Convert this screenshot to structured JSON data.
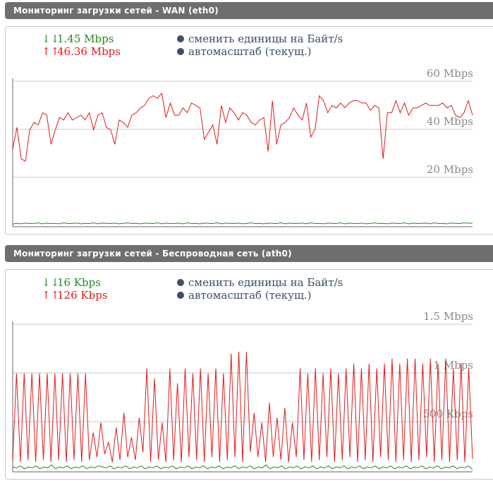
{
  "panels": [
    {
      "title": "Мониторинг загрузки сетей - WAN (eth0)",
      "rx_arrow": "↓↓",
      "rx_value": "1.45 Mbps",
      "tx_arrow": "↑↑",
      "tx_value": "46.36 Mbps",
      "toggle_units_label": "сменить единицы на Байт/s",
      "autoscale_label": "автомасштаб (текущ.)",
      "scale_labels": [
        "60 Mbps",
        "40 Mbps",
        "20 Mbps"
      ],
      "scale_max_mbps": 80,
      "tx_series": [
        32,
        41,
        28,
        27,
        40,
        43,
        42,
        47,
        46,
        34,
        40,
        45,
        44,
        47,
        44,
        45,
        46,
        44,
        47,
        40,
        46,
        47,
        41,
        40,
        34,
        44,
        43,
        41,
        46,
        47,
        49,
        50,
        53,
        54,
        53,
        55,
        45,
        51,
        46,
        46,
        49,
        47,
        51,
        50,
        49,
        36,
        39,
        42,
        34,
        50,
        43,
        49,
        47,
        44,
        47,
        46,
        43,
        42,
        44,
        45,
        31,
        52,
        34,
        42,
        43,
        45,
        49,
        46,
        44,
        51,
        37,
        40,
        54,
        52,
        47,
        50,
        49,
        51,
        49,
        51,
        52,
        52,
        51,
        51,
        48,
        50,
        49,
        28,
        47,
        47,
        52,
        47,
        51,
        46,
        49,
        49,
        50,
        51,
        50,
        50,
        50,
        51,
        49,
        50,
        46,
        45,
        47,
        52,
        46
      ],
      "rx_series": [
        1.1,
        1.4,
        1.2,
        1.5,
        1.3,
        1.4,
        1.6,
        1.2,
        1.5,
        1.3,
        1.4,
        1.2,
        1.6,
        1.3,
        1.4,
        1.5,
        1.2,
        1.4,
        1.3,
        1.6,
        1.2,
        1.5,
        1.4,
        1.3,
        1.5,
        1.2,
        1.4,
        1.6,
        1.3,
        1.4,
        1.2,
        1.5,
        1.4,
        1.3,
        1.6,
        1.2,
        1.5,
        1.3,
        1.4,
        1.5,
        1.2,
        1.6,
        1.3,
        1.4,
        1.2,
        1.5,
        1.4,
        1.3,
        1.6,
        1.2,
        1.5,
        1.4,
        1.3,
        1.5,
        1.2,
        1.4,
        1.6,
        1.3,
        1.4,
        1.2,
        1.5,
        1.4,
        1.3,
        1.6,
        1.2,
        1.5,
        1.3,
        1.4,
        1.5,
        1.2,
        1.6,
        1.3,
        1.4,
        1.2,
        1.5,
        1.4,
        1.3,
        1.6,
        1.2,
        1.5,
        1.4,
        1.3,
        1.5,
        1.2,
        1.4,
        1.6,
        1.3,
        1.4,
        1.2,
        1.5,
        1.4,
        1.3,
        1.6,
        1.2,
        1.5,
        1.3,
        1.4,
        1.5,
        1.2,
        1.6,
        1.3,
        1.4,
        1.2,
        1.5,
        1.4,
        1.3,
        1.6,
        1.45,
        1.45
      ]
    },
    {
      "title": "Мониторинг загрузки сетей - Беспроводная сеть (ath0)",
      "rx_arrow": "↓↓",
      "rx_value": "16 Kbps",
      "tx_arrow": "↑↑",
      "tx_value": "126 Kbps",
      "toggle_units_label": "сменить единицы на Байт/s",
      "autoscale_label": "автомасштаб (текущ.)",
      "scale_labels": [
        "1.5 Mbps",
        "1 Mbps",
        "500 Kbps"
      ],
      "scale_max_mbps": 2.0,
      "tx_series": [
        0.12,
        1.0,
        0.1,
        1.0,
        0.12,
        1.0,
        0.1,
        1.0,
        0.12,
        1.0,
        0.1,
        1.0,
        0.12,
        1.0,
        0.1,
        1.0,
        0.12,
        1.0,
        0.1,
        1.0,
        0.12,
        0.4,
        0.15,
        0.5,
        0.18,
        0.3,
        0.1,
        0.45,
        0.12,
        0.6,
        0.15,
        0.35,
        0.12,
        0.55,
        0.2,
        1.05,
        0.1,
        0.95,
        0.12,
        0.5,
        0.1,
        1.05,
        0.12,
        0.9,
        0.1,
        1.05,
        0.15,
        1.0,
        0.12,
        1.05,
        0.1,
        1.0,
        0.15,
        1.05,
        0.1,
        1.0,
        0.12,
        1.2,
        0.15,
        1.22,
        0.1,
        1.22,
        0.2,
        0.6,
        0.15,
        0.5,
        0.1,
        0.7,
        0.15,
        0.55,
        0.12,
        0.65,
        0.1,
        0.5,
        0.15,
        1.05,
        0.12,
        1.0,
        0.1,
        1.05,
        0.12,
        1.0,
        0.15,
        1.05,
        0.1,
        1.0,
        0.12,
        1.05,
        0.15,
        1.1,
        0.1,
        1.05,
        0.12,
        1.1,
        0.1,
        1.05,
        0.15,
        1.1,
        0.12,
        1.15,
        0.1,
        1.1,
        0.12,
        1.15,
        0.1,
        1.15,
        0.12,
        1.1,
        0.15,
        1.15,
        0.1,
        1.1,
        0.12,
        1.15,
        0.1,
        1.05,
        0.12,
        1.1,
        0.1,
        1.05,
        0.13
      ],
      "rx_series": [
        0.05,
        0.04,
        0.06,
        0.03,
        0.05,
        0.04,
        0.06,
        0.03,
        0.05,
        0.04,
        0.07,
        0.03,
        0.05,
        0.04,
        0.06,
        0.03,
        0.05,
        0.04,
        0.06,
        0.03,
        0.05,
        0.04,
        0.06,
        0.05,
        0.04,
        0.06,
        0.03,
        0.05,
        0.04,
        0.06,
        0.03,
        0.05,
        0.04,
        0.06,
        0.03,
        0.05,
        0.04,
        0.06,
        0.03,
        0.05,
        0.04,
        0.06,
        0.03,
        0.05,
        0.04,
        0.06,
        0.03,
        0.05,
        0.04,
        0.06,
        0.03,
        0.05,
        0.04,
        0.06,
        0.03,
        0.05,
        0.04,
        0.06,
        0.03,
        0.05,
        0.04,
        0.06,
        0.03,
        0.05,
        0.04,
        0.07,
        0.03,
        0.05,
        0.04,
        0.06,
        0.03,
        0.05,
        0.04,
        0.06,
        0.03,
        0.05,
        0.04,
        0.06,
        0.03,
        0.05,
        0.04,
        0.06,
        0.03,
        0.05,
        0.04,
        0.06,
        0.03,
        0.05,
        0.04,
        0.06,
        0.03,
        0.05,
        0.04,
        0.06,
        0.03,
        0.05,
        0.04,
        0.06,
        0.03,
        0.05,
        0.04,
        0.06,
        0.03,
        0.05,
        0.04,
        0.06,
        0.03,
        0.05,
        0.04,
        0.06,
        0.03,
        0.05,
        0.04,
        0.06,
        0.03,
        0.05,
        0.04,
        0.06,
        0.02
      ],
      "tx_color": "#e01b1b",
      "rx_color": "#1f8a1f"
    }
  ],
  "colors": {
    "header_bg": "#6e6e6e",
    "rx": "#1f8a1f",
    "tx": "#e01b1b",
    "link": "#3d4e6b",
    "grid": "#c8c8c8"
  }
}
